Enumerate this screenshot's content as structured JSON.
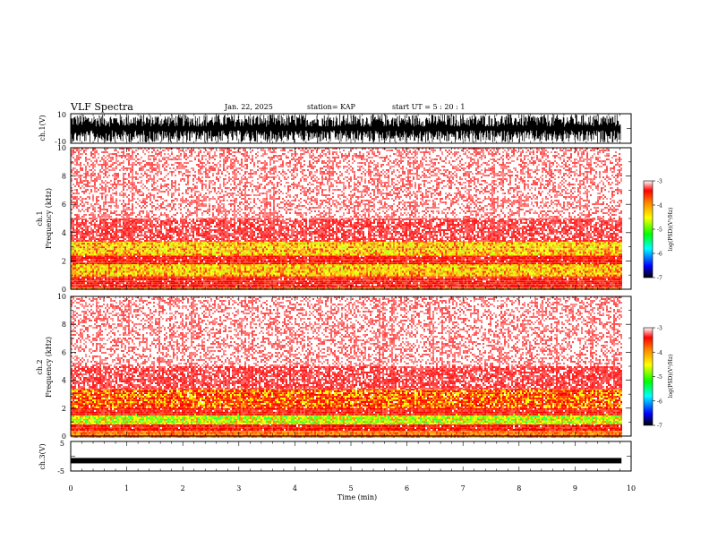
{
  "header": {
    "title": "VLF Spectra",
    "date": "Jan. 22, 2025",
    "station": "station= KAP",
    "start": "start  UT =   5 : 20 : 1"
  },
  "chart_data": [
    {
      "type": "line",
      "name": "ch1-waveform",
      "ylabel": "ch.1(V)",
      "ylim": [
        -10,
        10
      ],
      "yticks": [
        "10",
        "-10"
      ],
      "xlim": [
        0,
        10
      ]
    },
    {
      "type": "heatmap",
      "name": "ch1-spectrogram",
      "ylabel": "ch.1\nFrequency (kHz)",
      "ylim": [
        0,
        10
      ],
      "yticks": [
        "0",
        "2",
        "4",
        "6",
        "8",
        "10"
      ],
      "xlim": [
        0,
        10
      ],
      "colorbar": {
        "label": "log(PSD)(V²/Hz)",
        "range": [
          -7,
          -3
        ],
        "ticks": [
          "-3",
          "-4",
          "-5",
          "-6",
          "-7"
        ]
      },
      "bands": [
        {
          "from": 0.0,
          "to": 0.2,
          "level": "orange"
        },
        {
          "from": 0.2,
          "to": 1.0,
          "level": "red"
        },
        {
          "from": 1.0,
          "to": 1.8,
          "level": "yellow"
        },
        {
          "from": 1.8,
          "to": 2.4,
          "level": "red"
        },
        {
          "from": 2.4,
          "to": 3.4,
          "level": "yellow"
        },
        {
          "from": 3.4,
          "to": 5.0,
          "level": "red-light"
        },
        {
          "from": 5.0,
          "to": 10.0,
          "level": "red-sparse"
        }
      ]
    },
    {
      "type": "heatmap",
      "name": "ch2-spectrogram",
      "ylabel": "ch.2\nFrequency (kHz)",
      "ylim": [
        0,
        10
      ],
      "yticks": [
        "0",
        "2",
        "4",
        "6",
        "8",
        "10"
      ],
      "xlim": [
        0,
        10
      ],
      "colorbar": {
        "label": "log(PSD)(V²/Hz)",
        "range": [
          -7,
          -3
        ],
        "ticks": [
          "-3",
          "-4",
          "-5",
          "-6",
          "-7"
        ]
      },
      "bands": [
        {
          "from": 0.0,
          "to": 0.4,
          "level": "orange"
        },
        {
          "from": 0.4,
          "to": 0.9,
          "level": "red"
        },
        {
          "from": 0.9,
          "to": 1.6,
          "level": "green-yellow"
        },
        {
          "from": 1.6,
          "to": 2.0,
          "level": "red"
        },
        {
          "from": 2.0,
          "to": 3.4,
          "level": "red-yellow"
        },
        {
          "from": 3.4,
          "to": 5.0,
          "level": "red-light"
        },
        {
          "from": 5.0,
          "to": 10.0,
          "level": "red-sparse"
        }
      ]
    },
    {
      "type": "line",
      "name": "ch3-waveform",
      "ylabel": "ch.3(V)",
      "ylim": [
        -5,
        5
      ],
      "yticks": [
        "5",
        "-5"
      ],
      "value": -1.5,
      "xlim": [
        0,
        10
      ]
    }
  ],
  "xaxis": {
    "label": "Time (min)",
    "ticks": [
      "0",
      "1",
      "2",
      "3",
      "4",
      "5",
      "6",
      "7",
      "8",
      "9",
      "10"
    ],
    "data_end": 9.82
  },
  "colors": {
    "red": "#ff0000",
    "orange": "#ff7f00",
    "yellow": "#ffff00",
    "green": "#7fff00",
    "blue": "#0000ff"
  }
}
